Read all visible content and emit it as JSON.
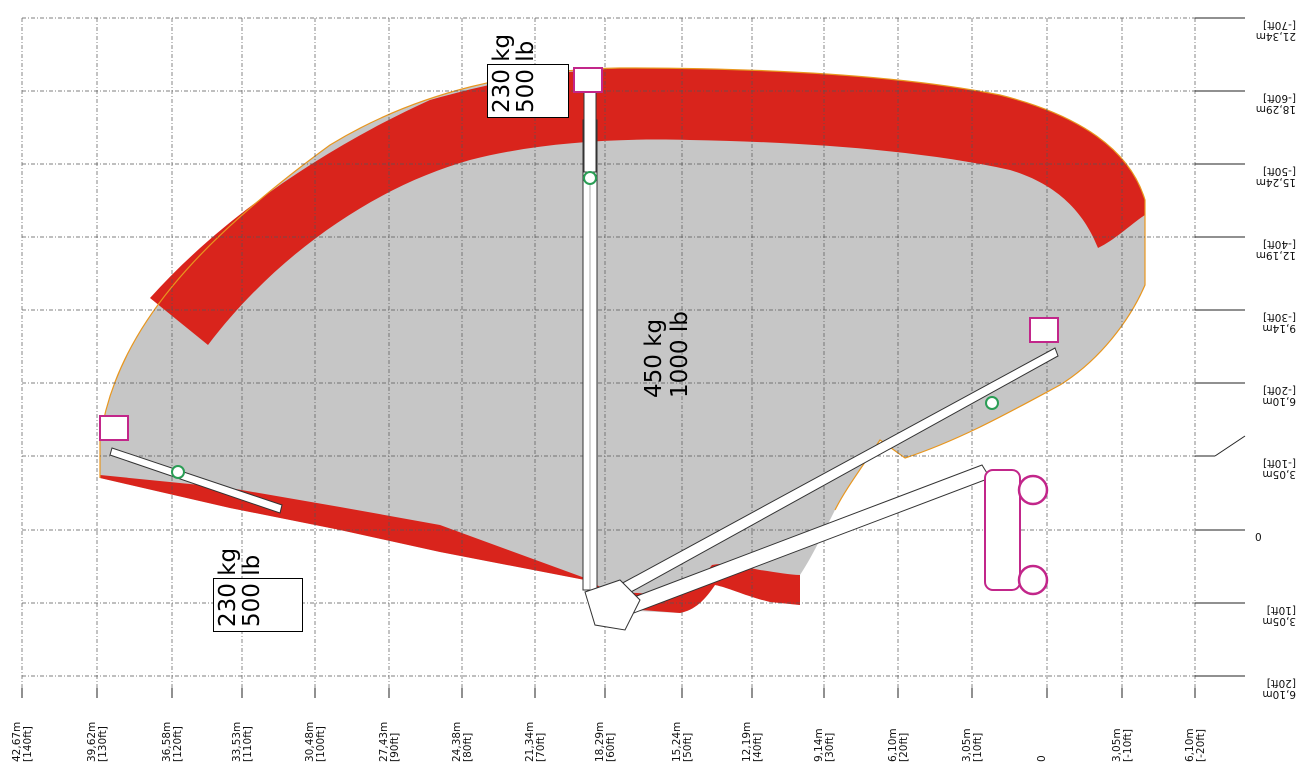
{
  "x_axis": {
    "labels": [
      [
        "42,67m",
        "[140ft]"
      ],
      [
        "39,62m",
        "[130ft]"
      ],
      [
        "36,58m",
        "[120ft]"
      ],
      [
        "33,53m",
        "[110ft]"
      ],
      [
        "30,48m",
        "[100ft]"
      ],
      [
        "27,43m",
        "[90ft]"
      ],
      [
        "24,38m",
        "[80ft]"
      ],
      [
        "21,34m",
        "[70ft]"
      ],
      [
        "18,29m",
        "[60ft]"
      ],
      [
        "15,24m",
        "[50ft]"
      ],
      [
        "12,19m",
        "[40ft]"
      ],
      [
        "9,14m",
        "[30ft]"
      ],
      [
        "6,10m",
        "[20ft]"
      ],
      [
        "3,05m",
        "[10ft]"
      ],
      [
        "0",
        ""
      ],
      [
        "3,05m",
        "[-10ft]"
      ],
      [
        "6,10m",
        "[-20ft]"
      ]
    ]
  },
  "y_axis": {
    "labels": [
      {
        "main": "21,34m",
        "sub": "[-70ft]",
        "flip": true
      },
      {
        "main": "18,29m",
        "sub": "[-60ft]",
        "flip": true
      },
      {
        "main": "15,24m",
        "sub": "[-50ft]",
        "flip": true
      },
      {
        "main": "12,19m",
        "sub": "[-40ft]",
        "flip": true
      },
      {
        "main": "9,14m",
        "sub": "[-30ft]",
        "flip": true
      },
      {
        "main": "6,10m",
        "sub": "[-20ft]",
        "flip": true
      },
      {
        "main": "3,05m",
        "sub": "[-10ft]",
        "flip": true
      },
      {
        "main": "0",
        "sub": "",
        "flip": false
      },
      {
        "main": "3,05m",
        "sub": "[10ft]",
        "flip": true
      },
      {
        "main": "6,10m",
        "sub": "[20ft]",
        "flip": true
      }
    ]
  },
  "load_labels": {
    "top": [
      "230 kg",
      "500 lb"
    ],
    "center": [
      "450 kg",
      "1000 lb"
    ],
    "left": [
      "230 kg",
      "500 lb"
    ]
  },
  "colors": {
    "envelope_grey": "#c6c6c6",
    "restricted_red": "#d9241c",
    "outline_orange": "#e8961e",
    "basket_magenta": "#c2268a",
    "joint_green": "#2a9d55",
    "grid": "#555555"
  }
}
